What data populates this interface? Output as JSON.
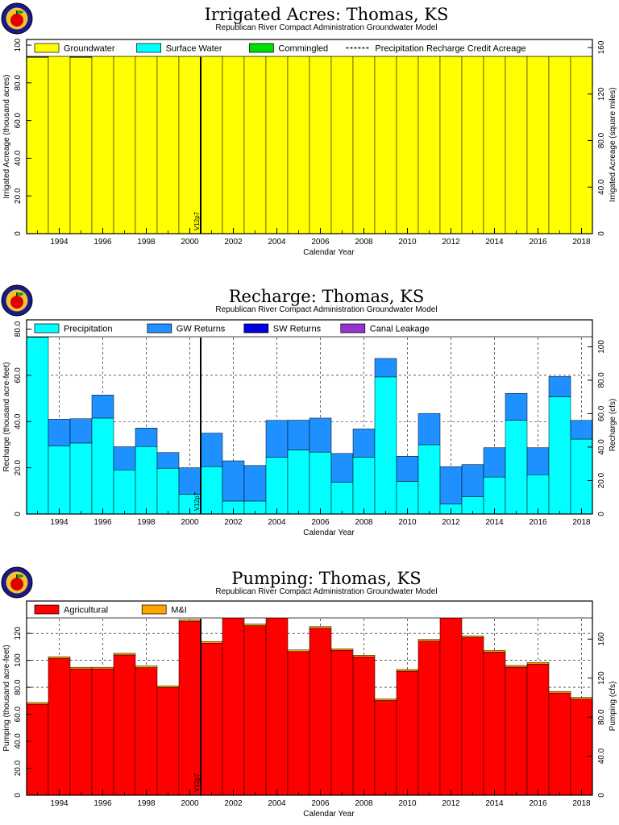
{
  "chart_data": [
    {
      "type": "bar",
      "title": "Irrigated Acres: Thomas, KS",
      "subtitle": "Republican River Compact Administration Groundwater Model",
      "xlabel": "Calendar Year",
      "ylabel": "Irrigated Acreage (thousand acres)",
      "ylabel_right": "Irrigated Acreage (square miles)",
      "x": [
        1993,
        1994,
        1995,
        1996,
        1997,
        1998,
        1999,
        2000,
        2001,
        2002,
        2003,
        2004,
        2005,
        2006,
        2007,
        2008,
        2009,
        2010,
        2011,
        2012,
        2013,
        2014,
        2015,
        2016,
        2017,
        2018
      ],
      "xticks": [
        "1994",
        "1996",
        "1998",
        "2000",
        "2002",
        "2004",
        "2006",
        "2008",
        "2010",
        "2012",
        "2014",
        "2016",
        "2018"
      ],
      "ylim": [
        0,
        103
      ],
      "yticks": [
        "0",
        "20.0",
        "40.0",
        "60.0",
        "80.0",
        "100"
      ],
      "yticks_right": [
        "0",
        "40.0",
        "80.0",
        "120",
        "160"
      ],
      "stacked": true,
      "series": [
        {
          "name": "Groundwater",
          "color": "#ffff00",
          "values": [
            93.5,
            96.6,
            93.5,
            97.0,
            97.8,
            96.7,
            97.3,
            100.8,
            98.4,
            99.2,
            99.2,
            100.3,
            99.6,
            98.4,
            96.7,
            96.7,
            95.9,
            97.5,
            98.4,
            99.2,
            96.2,
            97.8,
            101.1,
            98.6,
            100.6,
            101.9
          ]
        },
        {
          "name": "Surface Water",
          "color": "#00ffff",
          "values": [
            0.3,
            0.3,
            0.3,
            0.3,
            0.3,
            0.3,
            0.3,
            0.3,
            0.3,
            0.3,
            0.3,
            0.3,
            0.3,
            0.3,
            0.3,
            0.3,
            0.3,
            0.3,
            0.3,
            0.3,
            0.3,
            0.3,
            0.3,
            0.3,
            0.3,
            0.3
          ]
        },
        {
          "name": "Commingled",
          "color": "#00dd00",
          "values": [
            0.2,
            0.2,
            0.2,
            0.2,
            0.2,
            0.2,
            0.2,
            0.2,
            0.2,
            0.2,
            0.2,
            0.2,
            0.2,
            0.2,
            0.2,
            0.2,
            0.2,
            0.2,
            0.2,
            0.2,
            0.2,
            0.2,
            0.2,
            0.2,
            0.2,
            0.2
          ]
        }
      ],
      "line_series": {
        "name": "Precipitation Recharge Credit Acreage",
        "style": "dashed",
        "values": [
          94.5,
          97.6,
          94.5,
          98.0,
          98.8,
          97.7,
          98.3,
          101.8,
          99.4,
          100.2,
          100.2,
          101.3,
          100.6,
          99.4,
          97.7,
          97.7,
          96.9,
          98.5,
          99.4,
          100.2,
          97.2,
          98.8,
          102.1,
          99.6,
          101.6,
          102.9
        ]
      },
      "marker": {
        "x": 2000.5,
        "label": "V12p7"
      },
      "grid": true,
      "legend": "top"
    },
    {
      "type": "bar",
      "title": "Recharge: Thomas, KS",
      "subtitle": "Republican River Compact Administration Groundwater Model",
      "xlabel": "Calendar Year",
      "ylabel": "Recharge (thousand acre-feet)",
      "ylabel_right": "Recharge (cfs)",
      "x": [
        1993,
        1994,
        1995,
        1996,
        1997,
        1998,
        1999,
        2000,
        2001,
        2002,
        2003,
        2004,
        2005,
        2006,
        2007,
        2008,
        2009,
        2010,
        2011,
        2012,
        2013,
        2014,
        2015,
        2016,
        2017,
        2018
      ],
      "xticks": [
        "1994",
        "1996",
        "1998",
        "2000",
        "2002",
        "2004",
        "2006",
        "2008",
        "2010",
        "2012",
        "2014",
        "2016",
        "2018"
      ],
      "ylim": [
        0,
        84
      ],
      "yticks": [
        "0",
        "20.0",
        "40.0",
        "60.0",
        "80.0"
      ],
      "yticks_right": [
        "0",
        "20.0",
        "40.0",
        "60.0",
        "80.0",
        "100"
      ],
      "stacked": true,
      "series": [
        {
          "name": "Precipitation",
          "color": "#00ffff",
          "values": [
            76.5,
            29.5,
            30.7,
            41.5,
            19.1,
            29.2,
            19.8,
            8.6,
            20.5,
            5.6,
            5.6,
            24.5,
            27.7,
            26.8,
            13.7,
            24.6,
            59.3,
            14.1,
            30.0,
            4.3,
            7.5,
            16.0,
            40.6,
            17.0,
            50.7,
            32.4
          ]
        },
        {
          "name": "GW Returns",
          "color": "#1e90ff",
          "values": [
            7.5,
            11.5,
            10.5,
            10.0,
            10.0,
            8.0,
            6.8,
            11.4,
            14.5,
            17.4,
            15.4,
            16.0,
            12.9,
            14.7,
            12.5,
            12.2,
            8.0,
            10.9,
            13.5,
            16.2,
            13.9,
            12.7,
            11.6,
            11.7,
            8.8,
            8.1
          ]
        },
        {
          "name": "SW Returns",
          "color": "#0000dd",
          "values": [
            0,
            0,
            0,
            0,
            0,
            0,
            0,
            0,
            0,
            0,
            0,
            0,
            0,
            0,
            0,
            0,
            0,
            0,
            0,
            0,
            0,
            0,
            0,
            0,
            0,
            0
          ]
        },
        {
          "name": "Canal Leakage",
          "color": "#9932cc",
          "values": [
            0,
            0,
            0,
            0,
            0,
            0,
            0,
            0,
            0,
            0,
            0,
            0,
            0,
            0,
            0,
            0,
            0,
            0,
            0,
            0,
            0,
            0,
            0,
            0,
            0,
            0
          ]
        }
      ],
      "marker": {
        "x": 2000.5,
        "label": "V12p7"
      },
      "grid": true,
      "legend": "top"
    },
    {
      "type": "bar",
      "title": "Pumping: Thomas, KS",
      "subtitle": "Republican River Compact Administration Groundwater Model",
      "xlabel": "Calendar Year",
      "ylabel": "Pumping (thousand acre-feet)",
      "ylabel_right": "Pumping (cfs)",
      "x": [
        1993,
        1994,
        1995,
        1996,
        1997,
        1998,
        1999,
        2000,
        2001,
        2002,
        2003,
        2004,
        2005,
        2006,
        2007,
        2008,
        2009,
        2010,
        2011,
        2012,
        2013,
        2014,
        2015,
        2016,
        2017,
        2018
      ],
      "xticks": [
        "1994",
        "1996",
        "1998",
        "2000",
        "2002",
        "2004",
        "2006",
        "2008",
        "2010",
        "2012",
        "2014",
        "2016",
        "2018"
      ],
      "ylim": [
        0,
        144
      ],
      "yticks": [
        "0",
        "20.0",
        "40.0",
        "60.0",
        "80.0",
        "100",
        "120"
      ],
      "yticks_right": [
        "0",
        "40.0",
        "80.0",
        "120",
        "160"
      ],
      "stacked": true,
      "series": [
        {
          "name": "Agricultural",
          "color": "#ff0000",
          "values": [
            67.5,
            101.5,
            93.7,
            93.7,
            104.0,
            94.6,
            79.9,
            129.0,
            112.8,
            141.1,
            125.7,
            132.3,
            106.5,
            123.8,
            107.4,
            102.6,
            70.2,
            92.0,
            114.3,
            141.5,
            117.0,
            106.1,
            95.0,
            97.3,
            75.8,
            71.3
          ]
        },
        {
          "name": "M&I",
          "color": "#ffa500",
          "values": [
            1.2,
            1.2,
            1.2,
            1.2,
            1.2,
            1.2,
            1.2,
            1.2,
            1.2,
            1.2,
            1.2,
            1.2,
            1.2,
            1.2,
            1.2,
            1.2,
            1.2,
            1.2,
            1.2,
            1.2,
            1.2,
            1.2,
            1.2,
            1.2,
            1.2,
            1.2
          ]
        }
      ],
      "marker": {
        "x": 2000.5,
        "label": "V12p7"
      },
      "grid": true,
      "legend": "top"
    }
  ]
}
